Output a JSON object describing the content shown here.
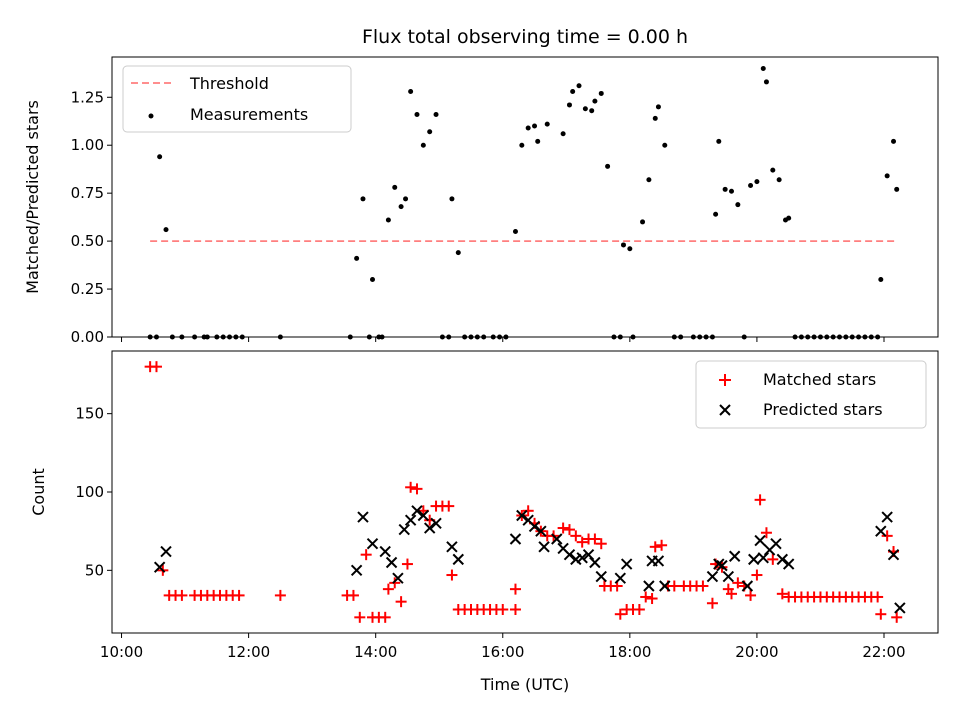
{
  "figure": {
    "title": "Flux total observing time = 0.00 h",
    "xlabel": "Time (UTC)"
  },
  "chart_data": [
    {
      "type": "scatter",
      "panel": "top",
      "ylabel": "Matched/Predicted stars",
      "x_unit": "hours UTC",
      "xlim": [
        9.85,
        22.85
      ],
      "ylim": [
        0,
        1.46
      ],
      "yticks": [
        0,
        0.25,
        0.5,
        0.75,
        1.0,
        1.25
      ],
      "ytick_labels": [
        "0.00",
        "0.25",
        "0.50",
        "0.75",
        "1.00",
        "1.25"
      ],
      "legend": {
        "placement": "upper left",
        "entries": [
          "Threshold",
          "Measurements"
        ]
      },
      "threshold": {
        "name": "Threshold",
        "value": 0.5,
        "x": [
          10.45,
          22.2
        ],
        "color": "#ff7f7f",
        "style": "dashed"
      },
      "series": [
        {
          "name": "Measurements",
          "marker": "dot",
          "color": "#000000",
          "points": [
            [
              10.45,
              0
            ],
            [
              10.55,
              0
            ],
            [
              10.6,
              0.94
            ],
            [
              10.7,
              0.56
            ],
            [
              10.8,
              0
            ],
            [
              10.95,
              0
            ],
            [
              11.15,
              0
            ],
            [
              11.3,
              0
            ],
            [
              11.35,
              0
            ],
            [
              11.5,
              0
            ],
            [
              11.6,
              0
            ],
            [
              11.7,
              0
            ],
            [
              11.8,
              0
            ],
            [
              11.9,
              0
            ],
            [
              12.5,
              0
            ],
            [
              13.6,
              0
            ],
            [
              13.7,
              0.41
            ],
            [
              13.8,
              0.72
            ],
            [
              13.9,
              0
            ],
            [
              13.95,
              0.3
            ],
            [
              14.05,
              0
            ],
            [
              14.1,
              0
            ],
            [
              14.2,
              0.61
            ],
            [
              14.3,
              0.78
            ],
            [
              14.4,
              0.68
            ],
            [
              14.47,
              0.72
            ],
            [
              14.55,
              1.28
            ],
            [
              14.65,
              1.16
            ],
            [
              14.75,
              1.0
            ],
            [
              14.85,
              1.07
            ],
            [
              14.95,
              1.16
            ],
            [
              15.05,
              0
            ],
            [
              15.15,
              0
            ],
            [
              15.2,
              0.72
            ],
            [
              15.3,
              0.44
            ],
            [
              15.4,
              0
            ],
            [
              15.5,
              0
            ],
            [
              15.6,
              0
            ],
            [
              15.7,
              0
            ],
            [
              15.85,
              0
            ],
            [
              15.95,
              0
            ],
            [
              16.05,
              0
            ],
            [
              16.2,
              0.55
            ],
            [
              16.3,
              1.0
            ],
            [
              16.4,
              1.09
            ],
            [
              16.5,
              1.1
            ],
            [
              16.55,
              1.02
            ],
            [
              16.7,
              1.11
            ],
            [
              16.95,
              1.06
            ],
            [
              17.05,
              1.21
            ],
            [
              17.1,
              1.28
            ],
            [
              17.2,
              1.31
            ],
            [
              17.3,
              1.19
            ],
            [
              17.4,
              1.18
            ],
            [
              17.45,
              1.23
            ],
            [
              17.55,
              1.27
            ],
            [
              17.65,
              0.89
            ],
            [
              17.75,
              0
            ],
            [
              17.85,
              0
            ],
            [
              17.9,
              0.48
            ],
            [
              18.0,
              0.46
            ],
            [
              18.05,
              0
            ],
            [
              18.2,
              0.6
            ],
            [
              18.3,
              0.82
            ],
            [
              18.4,
              1.14
            ],
            [
              18.45,
              1.2
            ],
            [
              18.55,
              1.0
            ],
            [
              18.7,
              0
            ],
            [
              18.8,
              0
            ],
            [
              19.0,
              0
            ],
            [
              19.1,
              0
            ],
            [
              19.2,
              0
            ],
            [
              19.3,
              0
            ],
            [
              19.35,
              0.64
            ],
            [
              19.4,
              1.02
            ],
            [
              19.5,
              0.77
            ],
            [
              19.6,
              0.76
            ],
            [
              19.7,
              0.69
            ],
            [
              19.8,
              0
            ],
            [
              19.9,
              0.79
            ],
            [
              20.0,
              0.81
            ],
            [
              20.1,
              1.4
            ],
            [
              20.15,
              1.33
            ],
            [
              20.25,
              0.87
            ],
            [
              20.35,
              0.82
            ],
            [
              20.45,
              0.61
            ],
            [
              20.5,
              0.62
            ],
            [
              20.6,
              0
            ],
            [
              20.7,
              0
            ],
            [
              20.8,
              0
            ],
            [
              20.9,
              0
            ],
            [
              21.0,
              0
            ],
            [
              21.1,
              0
            ],
            [
              21.2,
              0
            ],
            [
              21.3,
              0
            ],
            [
              21.4,
              0
            ],
            [
              21.5,
              0
            ],
            [
              21.6,
              0
            ],
            [
              21.7,
              0
            ],
            [
              21.8,
              0
            ],
            [
              21.9,
              0
            ],
            [
              21.95,
              0.3
            ],
            [
              22.05,
              0.84
            ],
            [
              22.15,
              1.02
            ],
            [
              22.2,
              0.77
            ]
          ]
        }
      ]
    },
    {
      "type": "scatter",
      "panel": "bottom",
      "ylabel": "Count",
      "x_unit": "hours UTC",
      "xlim": [
        9.85,
        22.85
      ],
      "ylim": [
        10,
        190
      ],
      "yticks": [
        50,
        100,
        150
      ],
      "ytick_labels": [
        "50",
        "100",
        "150"
      ],
      "xticks": [
        10,
        12,
        14,
        16,
        18,
        20,
        22
      ],
      "xtick_labels": [
        "10:00",
        "12:00",
        "14:00",
        "16:00",
        "18:00",
        "20:00",
        "22:00"
      ],
      "legend": {
        "placement": "upper right",
        "entries": [
          "Matched stars",
          "Predicted stars"
        ]
      },
      "series": [
        {
          "name": "Matched stars",
          "marker": "plus",
          "color": "#ff0000",
          "points": [
            [
              10.45,
              180
            ],
            [
              10.55,
              180
            ],
            [
              10.65,
              50
            ],
            [
              10.75,
              34
            ],
            [
              10.85,
              34
            ],
            [
              10.95,
              34
            ],
            [
              11.15,
              34
            ],
            [
              11.25,
              34
            ],
            [
              11.35,
              34
            ],
            [
              11.45,
              34
            ],
            [
              11.55,
              34
            ],
            [
              11.65,
              34
            ],
            [
              11.75,
              34
            ],
            [
              11.85,
              34
            ],
            [
              12.5,
              34
            ],
            [
              13.55,
              34
            ],
            [
              13.65,
              34
            ],
            [
              13.75,
              20
            ],
            [
              13.85,
              60
            ],
            [
              13.95,
              20
            ],
            [
              14.05,
              20
            ],
            [
              14.15,
              20
            ],
            [
              14.2,
              38
            ],
            [
              14.3,
              42
            ],
            [
              14.4,
              30
            ],
            [
              14.5,
              54
            ],
            [
              14.55,
              103
            ],
            [
              14.65,
              102
            ],
            [
              14.75,
              88
            ],
            [
              14.85,
              82
            ],
            [
              14.95,
              91
            ],
            [
              15.05,
              91
            ],
            [
              15.15,
              91
            ],
            [
              15.2,
              47
            ],
            [
              15.3,
              25
            ],
            [
              15.4,
              25
            ],
            [
              15.5,
              25
            ],
            [
              15.6,
              25
            ],
            [
              15.7,
              25
            ],
            [
              15.8,
              25
            ],
            [
              15.9,
              25
            ],
            [
              16.0,
              25
            ],
            [
              16.2,
              25
            ],
            [
              16.2,
              38
            ],
            [
              16.3,
              85
            ],
            [
              16.4,
              88
            ],
            [
              16.5,
              80
            ],
            [
              16.6,
              75
            ],
            [
              16.7,
              72
            ],
            [
              16.8,
              72
            ],
            [
              16.95,
              77
            ],
            [
              17.05,
              76
            ],
            [
              17.15,
              72
            ],
            [
              17.25,
              68
            ],
            [
              17.35,
              70
            ],
            [
              17.45,
              70
            ],
            [
              17.55,
              67
            ],
            [
              17.6,
              40
            ],
            [
              17.7,
              40
            ],
            [
              17.8,
              40
            ],
            [
              17.85,
              22
            ],
            [
              17.95,
              25
            ],
            [
              18.05,
              25
            ],
            [
              18.15,
              25
            ],
            [
              18.25,
              33
            ],
            [
              18.35,
              32
            ],
            [
              18.4,
              65
            ],
            [
              18.5,
              66
            ],
            [
              18.6,
              40
            ],
            [
              18.7,
              40
            ],
            [
              18.85,
              40
            ],
            [
              18.95,
              40
            ],
            [
              19.05,
              40
            ],
            [
              19.15,
              40
            ],
            [
              19.3,
              29
            ],
            [
              19.35,
              54
            ],
            [
              19.45,
              52
            ],
            [
              19.55,
              38
            ],
            [
              19.6,
              35
            ],
            [
              19.7,
              42
            ],
            [
              19.8,
              40
            ],
            [
              19.9,
              34
            ],
            [
              20.0,
              47
            ],
            [
              20.05,
              95
            ],
            [
              20.15,
              74
            ],
            [
              20.25,
              57
            ],
            [
              20.4,
              35
            ],
            [
              20.5,
              33
            ],
            [
              20.6,
              33
            ],
            [
              20.7,
              33
            ],
            [
              20.8,
              33
            ],
            [
              20.9,
              33
            ],
            [
              21.0,
              33
            ],
            [
              21.1,
              33
            ],
            [
              21.2,
              33
            ],
            [
              21.3,
              33
            ],
            [
              21.4,
              33
            ],
            [
              21.5,
              33
            ],
            [
              21.6,
              33
            ],
            [
              21.7,
              33
            ],
            [
              21.8,
              33
            ],
            [
              21.9,
              33
            ],
            [
              21.95,
              22
            ],
            [
              22.05,
              72
            ],
            [
              22.15,
              62
            ],
            [
              22.2,
              20
            ]
          ]
        },
        {
          "name": "Predicted stars",
          "marker": "x",
          "color": "#000000",
          "points": [
            [
              10.6,
              52
            ],
            [
              10.7,
              62
            ],
            [
              13.7,
              50
            ],
            [
              13.8,
              84
            ],
            [
              13.95,
              67
            ],
            [
              14.15,
              62
            ],
            [
              14.25,
              55
            ],
            [
              14.35,
              45
            ],
            [
              14.45,
              76
            ],
            [
              14.55,
              82
            ],
            [
              14.65,
              88
            ],
            [
              14.75,
              85
            ],
            [
              14.85,
              77
            ],
            [
              14.95,
              80
            ],
            [
              15.2,
              65
            ],
            [
              15.3,
              57
            ],
            [
              16.2,
              70
            ],
            [
              16.3,
              85
            ],
            [
              16.4,
              82
            ],
            [
              16.5,
              78
            ],
            [
              16.6,
              75
            ],
            [
              16.65,
              65
            ],
            [
              16.85,
              70
            ],
            [
              16.95,
              64
            ],
            [
              17.05,
              60
            ],
            [
              17.15,
              57
            ],
            [
              17.25,
              58
            ],
            [
              17.35,
              60
            ],
            [
              17.45,
              55
            ],
            [
              17.55,
              46
            ],
            [
              17.85,
              45
            ],
            [
              17.95,
              54
            ],
            [
              18.3,
              40
            ],
            [
              18.35,
              56
            ],
            [
              18.45,
              56
            ],
            [
              18.55,
              40
            ],
            [
              19.3,
              46
            ],
            [
              19.4,
              54
            ],
            [
              19.45,
              53
            ],
            [
              19.55,
              46
            ],
            [
              19.65,
              59
            ],
            [
              19.85,
              40
            ],
            [
              19.95,
              57
            ],
            [
              20.05,
              69
            ],
            [
              20.1,
              58
            ],
            [
              20.2,
              63
            ],
            [
              20.3,
              67
            ],
            [
              20.4,
              57
            ],
            [
              20.5,
              54
            ],
            [
              21.95,
              75
            ],
            [
              22.05,
              84
            ],
            [
              22.15,
              60
            ],
            [
              22.25,
              26
            ]
          ]
        }
      ]
    }
  ]
}
